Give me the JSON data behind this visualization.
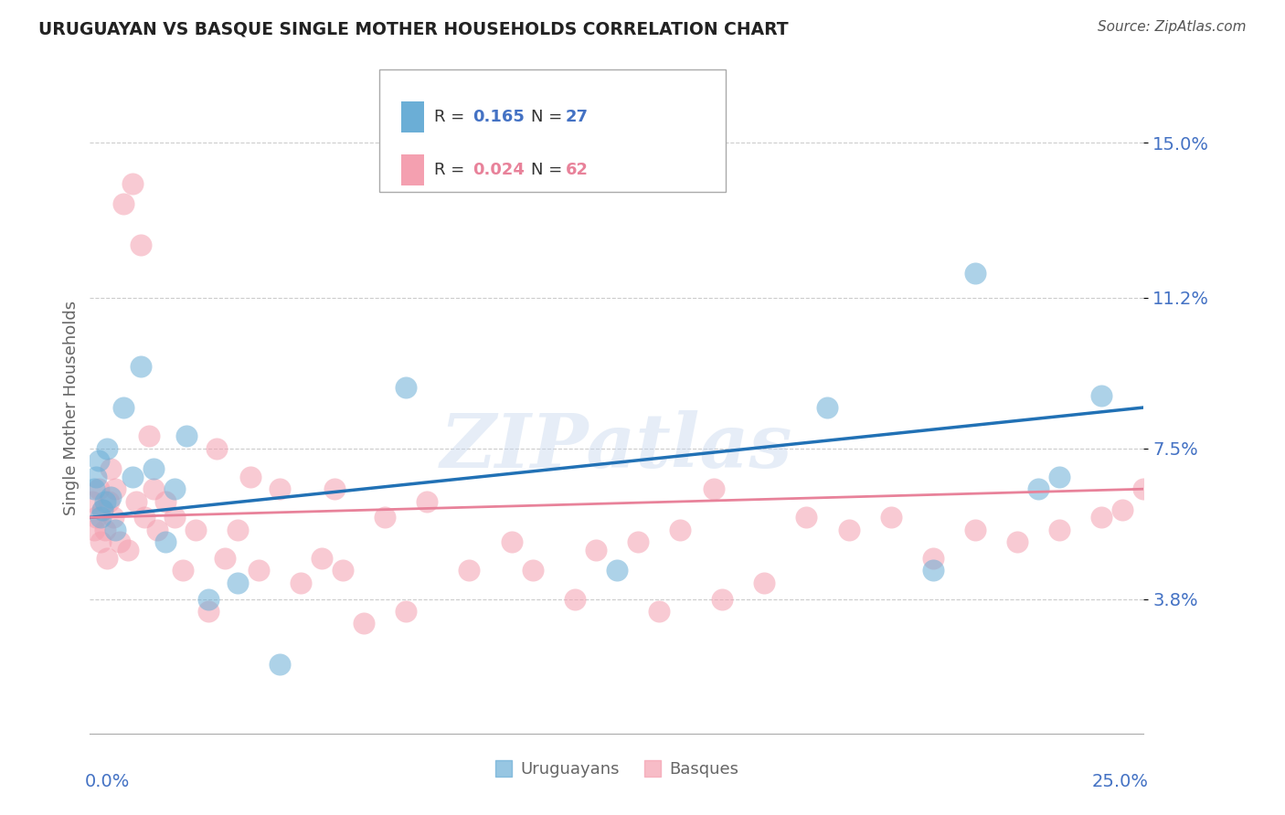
{
  "title": "URUGUAYAN VS BASQUE SINGLE MOTHER HOUSEHOLDS CORRELATION CHART",
  "source": "Source: ZipAtlas.com",
  "ylabel": "Single Mother Households",
  "ytick_values": [
    3.8,
    7.5,
    11.2,
    15.0
  ],
  "xlim": [
    0.0,
    25.0
  ],
  "ylim": [
    0.5,
    16.5
  ],
  "watermark": "ZIPatlas",
  "uruguayan_x": [
    0.1,
    0.15,
    0.2,
    0.25,
    0.3,
    0.35,
    0.4,
    0.5,
    0.6,
    0.8,
    1.0,
    1.2,
    1.5,
    1.8,
    2.0,
    2.3,
    2.8,
    3.5,
    4.5,
    7.5,
    12.5,
    17.5,
    20.0,
    21.0,
    22.5,
    23.0,
    24.0
  ],
  "uruguayan_y": [
    6.5,
    6.8,
    7.2,
    5.8,
    6.0,
    6.2,
    7.5,
    6.3,
    5.5,
    8.5,
    6.8,
    9.5,
    7.0,
    5.2,
    6.5,
    7.8,
    3.8,
    4.2,
    2.2,
    9.0,
    4.5,
    8.5,
    4.5,
    11.8,
    6.5,
    6.8,
    8.8
  ],
  "basque_x": [
    0.05,
    0.1,
    0.15,
    0.2,
    0.25,
    0.3,
    0.35,
    0.4,
    0.45,
    0.5,
    0.55,
    0.6,
    0.7,
    0.8,
    0.9,
    1.0,
    1.1,
    1.2,
    1.3,
    1.4,
    1.5,
    1.6,
    1.8,
    2.0,
    2.2,
    2.5,
    2.8,
    3.0,
    3.2,
    3.5,
    4.0,
    4.5,
    5.0,
    5.5,
    6.0,
    6.5,
    7.0,
    7.5,
    8.0,
    9.0,
    10.5,
    12.0,
    13.5,
    14.0,
    15.0,
    16.0,
    17.0,
    18.0,
    19.0,
    20.0,
    21.0,
    22.0,
    23.0,
    24.0,
    24.5,
    25.0,
    14.8,
    10.0,
    11.5,
    13.0,
    5.8,
    3.8
  ],
  "basque_y": [
    6.2,
    5.5,
    5.8,
    6.5,
    5.2,
    6.0,
    5.5,
    4.8,
    6.2,
    7.0,
    5.8,
    6.5,
    5.2,
    13.5,
    5.0,
    14.0,
    6.2,
    12.5,
    5.8,
    7.8,
    6.5,
    5.5,
    6.2,
    5.8,
    4.5,
    5.5,
    3.5,
    7.5,
    4.8,
    5.5,
    4.5,
    6.5,
    4.2,
    4.8,
    4.5,
    3.2,
    5.8,
    3.5,
    6.2,
    4.5,
    4.5,
    5.0,
    3.5,
    5.5,
    3.8,
    4.2,
    5.8,
    5.5,
    5.8,
    4.8,
    5.5,
    5.2,
    5.5,
    5.8,
    6.0,
    6.5,
    6.5,
    5.2,
    3.8,
    5.2,
    6.5,
    6.8
  ],
  "blue_line_x": [
    0.0,
    25.0
  ],
  "blue_line_y": [
    5.8,
    8.5
  ],
  "pink_line_x": [
    0.0,
    25.0
  ],
  "pink_line_y": [
    5.8,
    6.5
  ],
  "blue_line_color": "#2171b5",
  "pink_line_color": "#e8829a",
  "blue_scatter_color": "#6baed6",
  "pink_scatter_color": "#f4a0b0",
  "legend_r1": "0.165",
  "legend_n1": "27",
  "legend_r2": "0.024",
  "legend_n2": "62",
  "label_color": "#4472c4",
  "text_color": "#666666"
}
